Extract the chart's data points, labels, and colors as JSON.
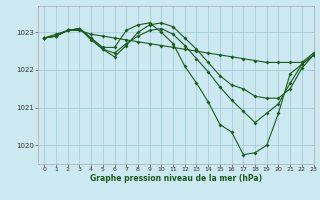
{
  "title": "Graphe pression niveau de la mer (hPa)",
  "background_color": "#cce8f0",
  "grid_color": "#9ec8d8",
  "line_color": "#1a5c1a",
  "xlim": [
    -0.5,
    23
  ],
  "ylim": [
    1019.5,
    1023.7
  ],
  "yticks": [
    1020,
    1021,
    1022,
    1023
  ],
  "xticks": [
    0,
    1,
    2,
    3,
    4,
    5,
    6,
    7,
    8,
    9,
    10,
    11,
    12,
    13,
    14,
    15,
    16,
    17,
    18,
    19,
    20,
    21,
    22,
    23
  ],
  "curves": [
    {
      "x": [
        0,
        1,
        2,
        3,
        4,
        5,
        6,
        7,
        8,
        9,
        10,
        11,
        12,
        13,
        14,
        15,
        16,
        17,
        18,
        19,
        20,
        21,
        22,
        23
      ],
      "y": [
        1022.85,
        1022.95,
        1023.05,
        1023.05,
        1022.95,
        1022.9,
        1022.85,
        1022.8,
        1022.75,
        1022.7,
        1022.65,
        1022.6,
        1022.55,
        1022.5,
        1022.45,
        1022.4,
        1022.35,
        1022.3,
        1022.25,
        1022.2,
        1022.2,
        1022.2,
        1022.2,
        1022.45
      ]
    },
    {
      "x": [
        0,
        1,
        2,
        3,
        4,
        5,
        6,
        7,
        8,
        9,
        10,
        11,
        12,
        13,
        14,
        15,
        16,
        17,
        18,
        19,
        20,
        21,
        22,
        23
      ],
      "y": [
        1022.85,
        1022.9,
        1023.05,
        1023.1,
        1022.8,
        1022.55,
        1022.35,
        1022.65,
        1023.0,
        1023.2,
        1023.25,
        1023.15,
        1022.85,
        1022.55,
        1022.2,
        1021.85,
        1021.6,
        1021.5,
        1021.3,
        1021.25,
        1021.25,
        1021.5,
        1022.05,
        1022.4
      ]
    },
    {
      "x": [
        0,
        1,
        2,
        3,
        4,
        5,
        6,
        7,
        8,
        9,
        10,
        11,
        12,
        13,
        14,
        15,
        16,
        17,
        18,
        19,
        20,
        21,
        22,
        23
      ],
      "y": [
        1022.85,
        1022.9,
        1023.05,
        1023.1,
        1022.85,
        1022.55,
        1022.45,
        1022.7,
        1022.9,
        1023.05,
        1023.1,
        1022.95,
        1022.65,
        1022.3,
        1021.95,
        1021.55,
        1021.2,
        1020.9,
        1020.6,
        1020.85,
        1021.1,
        1021.65,
        1022.15,
        1022.4
      ]
    },
    {
      "x": [
        0,
        1,
        2,
        3,
        4,
        5,
        6,
        7,
        8,
        9,
        10,
        11,
        12,
        13,
        14,
        15,
        16,
        17,
        18,
        19,
        20,
        21,
        22,
        23
      ],
      "y": [
        1022.85,
        1022.9,
        1023.05,
        1023.1,
        1022.85,
        1022.6,
        1022.6,
        1023.05,
        1023.2,
        1023.25,
        1023.0,
        1022.7,
        1022.1,
        1021.65,
        1021.15,
        1020.55,
        1020.35,
        1019.75,
        1019.8,
        1020.0,
        1020.85,
        1021.9,
        1022.15,
        1022.4
      ]
    }
  ]
}
